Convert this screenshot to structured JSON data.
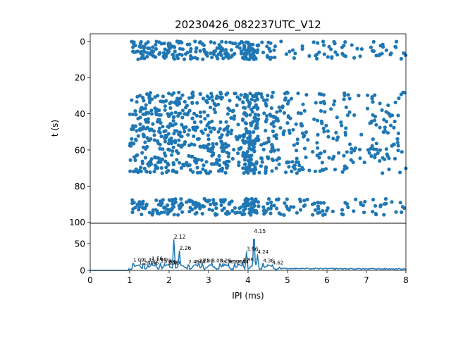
{
  "chart_data": [
    {
      "type": "scatter",
      "title": "20230426_082237UTC_V12",
      "xlabel": "",
      "ylabel": "t (s)",
      "xlim": [
        0,
        8
      ],
      "ylim": [
        100,
        0
      ],
      "y_inverted": true,
      "yticks": [
        "0",
        "20",
        "40",
        "60",
        "80",
        "100"
      ],
      "color": "#1f77b4",
      "clusters": [
        {
          "t_range": [
            0,
            10
          ],
          "ipi_range": [
            1.05,
            8.0
          ]
        },
        {
          "t_range": [
            28,
            73
          ],
          "ipi_range": [
            1.0,
            8.0
          ]
        },
        {
          "t_range": [
            87,
            96
          ],
          "ipi_range": [
            1.05,
            8.0
          ]
        }
      ]
    },
    {
      "type": "line",
      "xlabel": "IPI (ms)",
      "ylabel": "",
      "xlim": [
        0,
        8
      ],
      "ylim": [
        0,
        80
      ],
      "xticks": [
        "0",
        "1",
        "2",
        "3",
        "4",
        "5",
        "6",
        "7",
        "8"
      ],
      "yticks": [
        "0",
        "50"
      ],
      "color": "#1f77b4",
      "peaks": [
        {
          "x": 1.09,
          "y": 15,
          "label": "1.09"
        },
        {
          "x": 1.24,
          "y": 10,
          "label": "1.24"
        },
        {
          "x": 1.35,
          "y": 15,
          "label": "1.35"
        },
        {
          "x": 1.46,
          "y": 10,
          "label": "1.46"
        },
        {
          "x": 1.56,
          "y": 18,
          "label": "1.56"
        },
        {
          "x": 1.66,
          "y": 16,
          "label": "1.66"
        },
        {
          "x": 1.78,
          "y": 14,
          "label": "1.78"
        },
        {
          "x": 1.88,
          "y": 12,
          "label": "1.88"
        },
        {
          "x": 1.96,
          "y": 10,
          "label": "1.96"
        },
        {
          "x": 2.0,
          "y": 10,
          "label": "2.00"
        },
        {
          "x": 2.12,
          "y": 58,
          "label": "2.12"
        },
        {
          "x": 2.26,
          "y": 37,
          "label": "2.26"
        },
        {
          "x": 2.49,
          "y": 12,
          "label": "2.49"
        },
        {
          "x": 2.65,
          "y": 12,
          "label": "2.65"
        },
        {
          "x": 2.75,
          "y": 14,
          "label": "2.75"
        },
        {
          "x": 2.84,
          "y": 14,
          "label": "2.84"
        },
        {
          "x": 3.08,
          "y": 14,
          "label": "3.08"
        },
        {
          "x": 3.29,
          "y": 14,
          "label": "3.29"
        },
        {
          "x": 3.36,
          "y": 12,
          "label": "3.36"
        },
        {
          "x": 3.5,
          "y": 12,
          "label": "3.50"
        },
        {
          "x": 3.66,
          "y": 12,
          "label": "3.66"
        },
        {
          "x": 3.74,
          "y": 12,
          "label": "3.74"
        },
        {
          "x": 3.86,
          "y": 16,
          "label": "3.86"
        },
        {
          "x": 3.96,
          "y": 35,
          "label": "3.96"
        },
        {
          "x": 4.15,
          "y": 68,
          "label": "4.15"
        },
        {
          "x": 4.24,
          "y": 30,
          "label": "4.24"
        },
        {
          "x": 4.38,
          "y": 14,
          "label": "4.38"
        },
        {
          "x": 4.62,
          "y": 10,
          "label": "4.62"
        }
      ]
    }
  ]
}
